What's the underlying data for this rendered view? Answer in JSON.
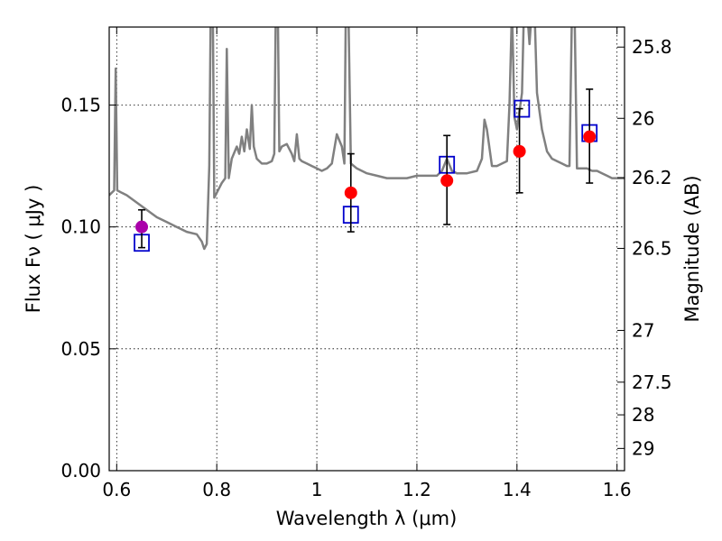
{
  "chart_data": {
    "type": "scatter",
    "xlabel": "Wavelength  λ (μm)",
    "ylabel": "Flux  Fν  ( μJy )",
    "ylabel_right": "Magnitude (AB)",
    "xlim": [
      0.585,
      1.615
    ],
    "ylim": [
      0.0,
      0.182
    ],
    "x_ticks": [
      {
        "value": 0.6,
        "label": "0.6"
      },
      {
        "value": 0.8,
        "label": "0.8"
      },
      {
        "value": 1.0,
        "label": "1"
      },
      {
        "value": 1.2,
        "label": "1.2"
      },
      {
        "value": 1.4,
        "label": "1.4"
      },
      {
        "value": 1.6,
        "label": "1.6"
      }
    ],
    "y_ticks": [
      {
        "value": 0.0,
        "label": "0.00"
      },
      {
        "value": 0.05,
        "label": "0.05"
      },
      {
        "value": 0.1,
        "label": "0.10"
      },
      {
        "value": 0.15,
        "label": "0.15"
      }
    ],
    "right_ticks": [
      {
        "value": 25.8,
        "label": "25.8"
      },
      {
        "value": 26.0,
        "label": "26"
      },
      {
        "value": 26.2,
        "label": "26.2"
      },
      {
        "value": 26.5,
        "label": "26.5"
      },
      {
        "value": 27.0,
        "label": "27"
      },
      {
        "value": 27.5,
        "label": "27.5"
      },
      {
        "value": 28.0,
        "label": "28"
      },
      {
        "value": 29.0,
        "label": "29"
      }
    ],
    "grid": true,
    "series": [
      {
        "name": "model spectrum",
        "kind": "line",
        "color": "#808080",
        "points": [
          [
            0.585,
            0.113
          ],
          [
            0.595,
            0.115
          ],
          [
            0.598,
            0.165
          ],
          [
            0.601,
            0.115
          ],
          [
            0.61,
            0.114
          ],
          [
            0.62,
            0.113
          ],
          [
            0.64,
            0.11
          ],
          [
            0.66,
            0.107
          ],
          [
            0.68,
            0.104
          ],
          [
            0.7,
            0.102
          ],
          [
            0.72,
            0.1
          ],
          [
            0.74,
            0.098
          ],
          [
            0.76,
            0.097
          ],
          [
            0.77,
            0.094
          ],
          [
            0.775,
            0.091
          ],
          [
            0.78,
            0.093
          ],
          [
            0.785,
            0.125
          ],
          [
            0.788,
            0.19
          ],
          [
            0.792,
            0.19
          ],
          [
            0.795,
            0.112
          ],
          [
            0.8,
            0.114
          ],
          [
            0.81,
            0.118
          ],
          [
            0.817,
            0.12
          ],
          [
            0.82,
            0.173
          ],
          [
            0.824,
            0.12
          ],
          [
            0.83,
            0.128
          ],
          [
            0.84,
            0.133
          ],
          [
            0.845,
            0.13
          ],
          [
            0.85,
            0.137
          ],
          [
            0.855,
            0.131
          ],
          [
            0.86,
            0.14
          ],
          [
            0.866,
            0.132
          ],
          [
            0.87,
            0.15
          ],
          [
            0.874,
            0.133
          ],
          [
            0.88,
            0.128
          ],
          [
            0.89,
            0.126
          ],
          [
            0.9,
            0.126
          ],
          [
            0.91,
            0.127
          ],
          [
            0.915,
            0.13
          ],
          [
            0.918,
            0.19
          ],
          [
            0.922,
            0.19
          ],
          [
            0.925,
            0.131
          ],
          [
            0.93,
            0.133
          ],
          [
            0.94,
            0.134
          ],
          [
            0.95,
            0.13
          ],
          [
            0.955,
            0.127
          ],
          [
            0.96,
            0.138
          ],
          [
            0.965,
            0.128
          ],
          [
            0.97,
            0.127
          ],
          [
            0.98,
            0.126
          ],
          [
            0.99,
            0.125
          ],
          [
            1.0,
            0.124
          ],
          [
            1.01,
            0.123
          ],
          [
            1.02,
            0.124
          ],
          [
            1.03,
            0.126
          ],
          [
            1.04,
            0.138
          ],
          [
            1.05,
            0.133
          ],
          [
            1.055,
            0.126
          ],
          [
            1.058,
            0.19
          ],
          [
            1.063,
            0.19
          ],
          [
            1.068,
            0.126
          ],
          [
            1.08,
            0.124
          ],
          [
            1.1,
            0.122
          ],
          [
            1.12,
            0.121
          ],
          [
            1.14,
            0.12
          ],
          [
            1.16,
            0.12
          ],
          [
            1.18,
            0.12
          ],
          [
            1.2,
            0.121
          ],
          [
            1.22,
            0.121
          ],
          [
            1.24,
            0.121
          ],
          [
            1.25,
            0.123
          ],
          [
            1.26,
            0.128
          ],
          [
            1.27,
            0.123
          ],
          [
            1.28,
            0.122
          ],
          [
            1.3,
            0.122
          ],
          [
            1.32,
            0.123
          ],
          [
            1.33,
            0.128
          ],
          [
            1.335,
            0.144
          ],
          [
            1.34,
            0.14
          ],
          [
            1.35,
            0.125
          ],
          [
            1.36,
            0.125
          ],
          [
            1.37,
            0.126
          ],
          [
            1.38,
            0.127
          ],
          [
            1.385,
            0.15
          ],
          [
            1.39,
            0.19
          ],
          [
            1.395,
            0.145
          ],
          [
            1.4,
            0.14
          ],
          [
            1.41,
            0.155
          ],
          [
            1.414,
            0.19
          ],
          [
            1.42,
            0.19
          ],
          [
            1.425,
            0.175
          ],
          [
            1.43,
            0.19
          ],
          [
            1.435,
            0.19
          ],
          [
            1.44,
            0.155
          ],
          [
            1.45,
            0.14
          ],
          [
            1.46,
            0.131
          ],
          [
            1.47,
            0.128
          ],
          [
            1.48,
            0.127
          ],
          [
            1.49,
            0.126
          ],
          [
            1.5,
            0.125
          ],
          [
            1.505,
            0.125
          ],
          [
            1.51,
            0.19
          ],
          [
            1.515,
            0.19
          ],
          [
            1.52,
            0.124
          ],
          [
            1.53,
            0.124
          ],
          [
            1.54,
            0.124
          ],
          [
            1.55,
            0.123
          ],
          [
            1.56,
            0.123
          ],
          [
            1.57,
            0.122
          ],
          [
            1.58,
            0.121
          ],
          [
            1.59,
            0.12
          ],
          [
            1.6,
            0.12
          ],
          [
            1.615,
            0.12
          ]
        ]
      },
      {
        "name": "model photometry",
        "kind": "square",
        "color": "#0000cc",
        "points": [
          [
            0.65,
            0.0935
          ],
          [
            1.068,
            0.105
          ],
          [
            1.26,
            0.1255
          ],
          [
            1.41,
            0.1485
          ],
          [
            1.545,
            0.1385
          ]
        ]
      },
      {
        "name": "observed photometry",
        "kind": "circle",
        "color": "#ff0000",
        "highlight_color": "#aa00aa",
        "points": [
          {
            "x": 0.65,
            "y": 0.1,
            "yerr_low": 0.0915,
            "yerr_high": 0.107,
            "highlight": true
          },
          {
            "x": 1.068,
            "y": 0.114,
            "yerr_low": 0.098,
            "yerr_high": 0.13,
            "highlight": false
          },
          {
            "x": 1.26,
            "y": 0.119,
            "yerr_low": 0.101,
            "yerr_high": 0.1375,
            "highlight": false
          },
          {
            "x": 1.405,
            "y": 0.131,
            "yerr_low": 0.114,
            "yerr_high": 0.1485,
            "highlight": false
          },
          {
            "x": 1.545,
            "y": 0.137,
            "yerr_low": 0.118,
            "yerr_high": 0.1565,
            "highlight": false
          }
        ]
      }
    ]
  }
}
